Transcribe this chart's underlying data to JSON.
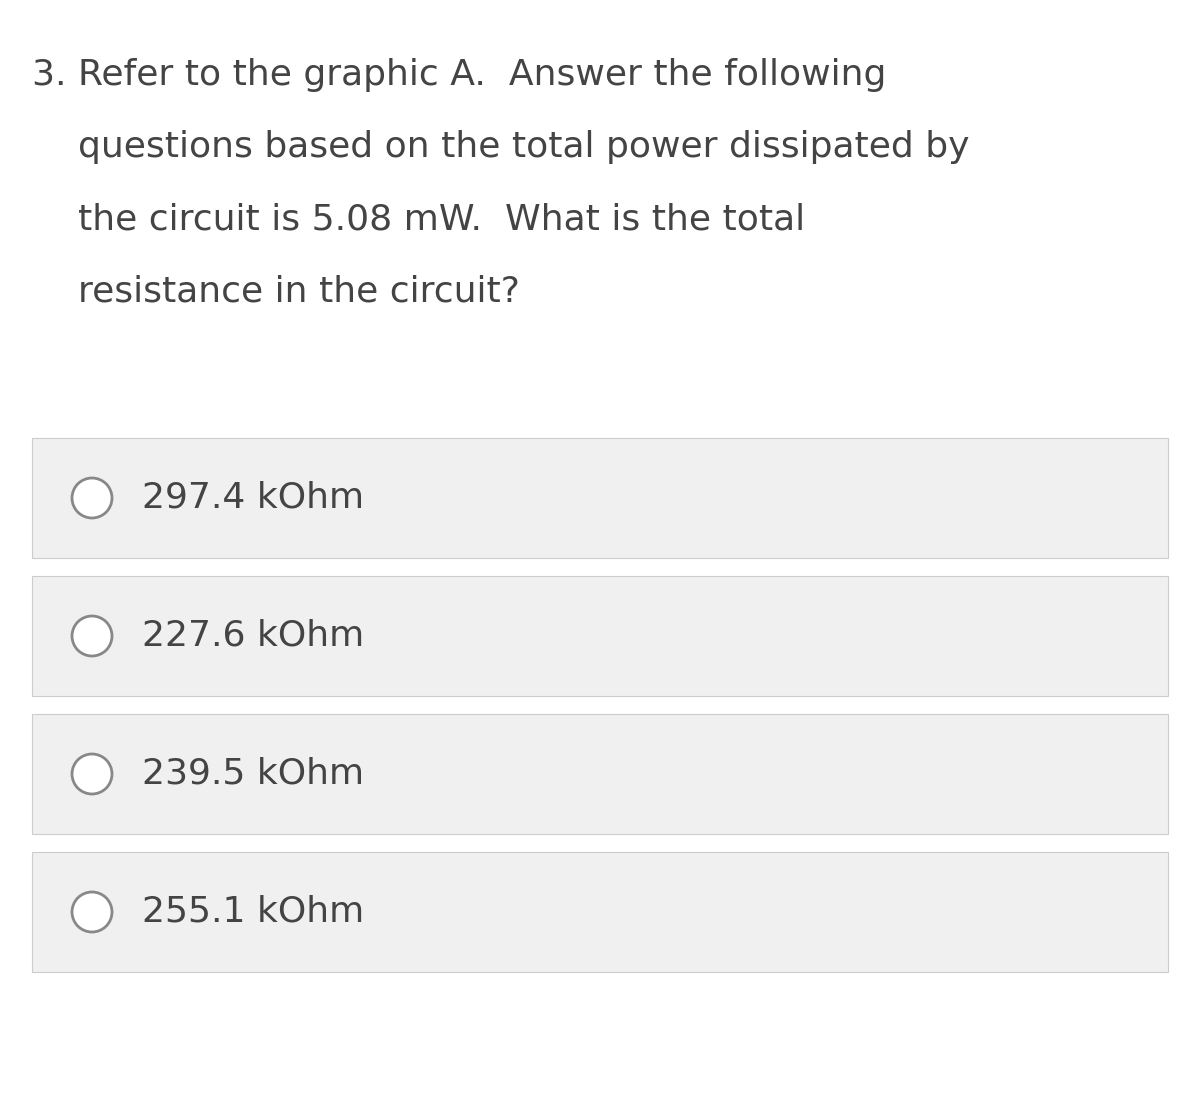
{
  "background_color": "#ffffff",
  "question_lines": [
    "3. Refer to the graphic A.  Answer the following",
    "    questions based on the total power dissipated by",
    "    the circuit is 5.08 mW.  What is the total",
    "    resistance in the circuit?"
  ],
  "options": [
    "297.4 kOhm",
    "227.6 kOhm",
    "239.5 kOhm",
    "255.1 kOhm"
  ],
  "option_bg_color": "#f0f0f0",
  "option_border_color": "#cccccc",
  "option_text_color": "#444444",
  "question_text_color": "#444444",
  "circle_edge_color": "#888888",
  "font_size_question": 26,
  "font_size_options": 26,
  "figsize": [
    12.0,
    11.17
  ],
  "dpi": 100
}
